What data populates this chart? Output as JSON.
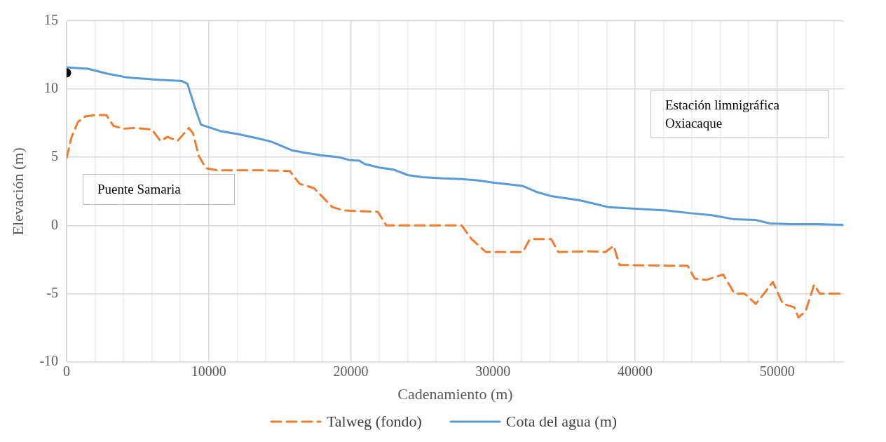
{
  "chart_data": {
    "type": "line",
    "xlabel": "Cadenamiento (m)",
    "ylabel": "Elevación (m)",
    "xlim": [
      0,
      54700
    ],
    "xticks": [
      0,
      {
        "value": 2000,
        "label": null
      },
      {
        "value": 4000,
        "label": null
      },
      {
        "value": 6000,
        "label": null
      },
      {
        "value": 8000,
        "label": null
      },
      10000,
      {
        "value": 12000,
        "label": null
      },
      {
        "value": 14000,
        "label": null
      },
      {
        "value": 16000,
        "label": null
      },
      {
        "value": 18000,
        "label": null
      },
      20000,
      {
        "value": 22000,
        "label": null
      },
      {
        "value": 24000,
        "label": null
      },
      {
        "value": 26000,
        "label": null
      },
      {
        "value": 28000,
        "label": null
      },
      30000,
      {
        "value": 32000,
        "label": null
      },
      {
        "value": 34000,
        "label": null
      },
      {
        "value": 36000,
        "label": null
      },
      {
        "value": 38000,
        "label": null
      },
      40000,
      {
        "value": 42000,
        "label": null
      },
      {
        "value": 44000,
        "label": null
      },
      {
        "value": 46000,
        "label": null
      },
      {
        "value": 48000,
        "label": null
      },
      50000,
      {
        "value": 52000,
        "label": null
      },
      {
        "value": 54000,
        "label": null
      }
    ],
    "ylim": [
      -10,
      15
    ],
    "yticks": [
      -10,
      -5,
      0,
      5,
      10,
      15
    ],
    "grid": true,
    "legend": "bottom",
    "marker": "none",
    "annotations": [
      "Puente Samaria",
      "Estación limnigráfica\nOxiacaque"
    ],
    "series": [
      {
        "name": "Talweg (fondo)",
        "color": "#ed7d31",
        "line_style": "dashed",
        "x": [
          0,
          350,
          800,
          1300,
          2000,
          2800,
          3300,
          4000,
          4800,
          6000,
          6600,
          7100,
          7800,
          8600,
          8900,
          9300,
          9800,
          10600,
          13400,
          15700,
          16400,
          17400,
          18700,
          19500,
          20500,
          21900,
          22500,
          27800,
          28500,
          29500,
          32100,
          32600,
          34100,
          34600,
          36600,
          37900,
          38500,
          38900,
          42200,
          43700,
          44200,
          45000,
          46200,
          47000,
          47700,
          48500,
          49000,
          49700,
          50400,
          51200,
          51500,
          52000,
          52600,
          53000,
          54600
        ],
        "values": [
          4.95,
          6.5,
          7.6,
          8.0,
          8.1,
          8.1,
          7.3,
          7.1,
          7.15,
          7.05,
          6.2,
          6.5,
          6.2,
          7.15,
          6.75,
          5.1,
          4.2,
          4.05,
          4.05,
          4.0,
          3.05,
          2.75,
          1.35,
          1.1,
          1.05,
          1.0,
          0.0,
          0.0,
          -1.0,
          -1.95,
          -1.95,
          -1.0,
          -1.0,
          -1.95,
          -1.9,
          -1.95,
          -1.5,
          -2.9,
          -2.95,
          -2.95,
          -3.9,
          -4.0,
          -3.6,
          -5.0,
          -5.0,
          -5.75,
          -5.1,
          -4.15,
          -5.75,
          -6.0,
          -6.75,
          -6.3,
          -4.35,
          -5.0,
          -5.0
        ]
      },
      {
        "name": "Cota del agua (m)",
        "color": "#5b9bd5",
        "line_style": "solid",
        "x": [
          0,
          1500,
          2800,
          4300,
          6300,
          8100,
          8500,
          9000,
          9450,
          10900,
          12100,
          13400,
          14400,
          15900,
          16700,
          17900,
          19200,
          19900,
          20600,
          21000,
          22000,
          23000,
          24000,
          25000,
          26500,
          27800,
          29000,
          30000,
          32100,
          33100,
          34100,
          36100,
          36900,
          38100,
          39600,
          42200,
          43900,
          45400,
          47000,
          48500,
          49500,
          51000,
          52800,
          54600
        ],
        "values": [
          11.6,
          11.5,
          11.15,
          10.85,
          10.7,
          10.6,
          10.4,
          8.75,
          7.4,
          6.9,
          6.7,
          6.4,
          6.15,
          5.5,
          5.35,
          5.15,
          5.0,
          4.8,
          4.75,
          4.5,
          4.25,
          4.1,
          3.7,
          3.55,
          3.45,
          3.4,
          3.3,
          3.15,
          2.9,
          2.45,
          2.15,
          1.85,
          1.65,
          1.35,
          1.25,
          1.1,
          0.9,
          0.75,
          0.45,
          0.4,
          0.15,
          0.1,
          0.1,
          0.05
        ]
      },
      {
        "type": "scatter",
        "color": "#000000",
        "marker": "circle",
        "x": [
          0
        ],
        "values": [
          11.2
        ]
      }
    ]
  }
}
